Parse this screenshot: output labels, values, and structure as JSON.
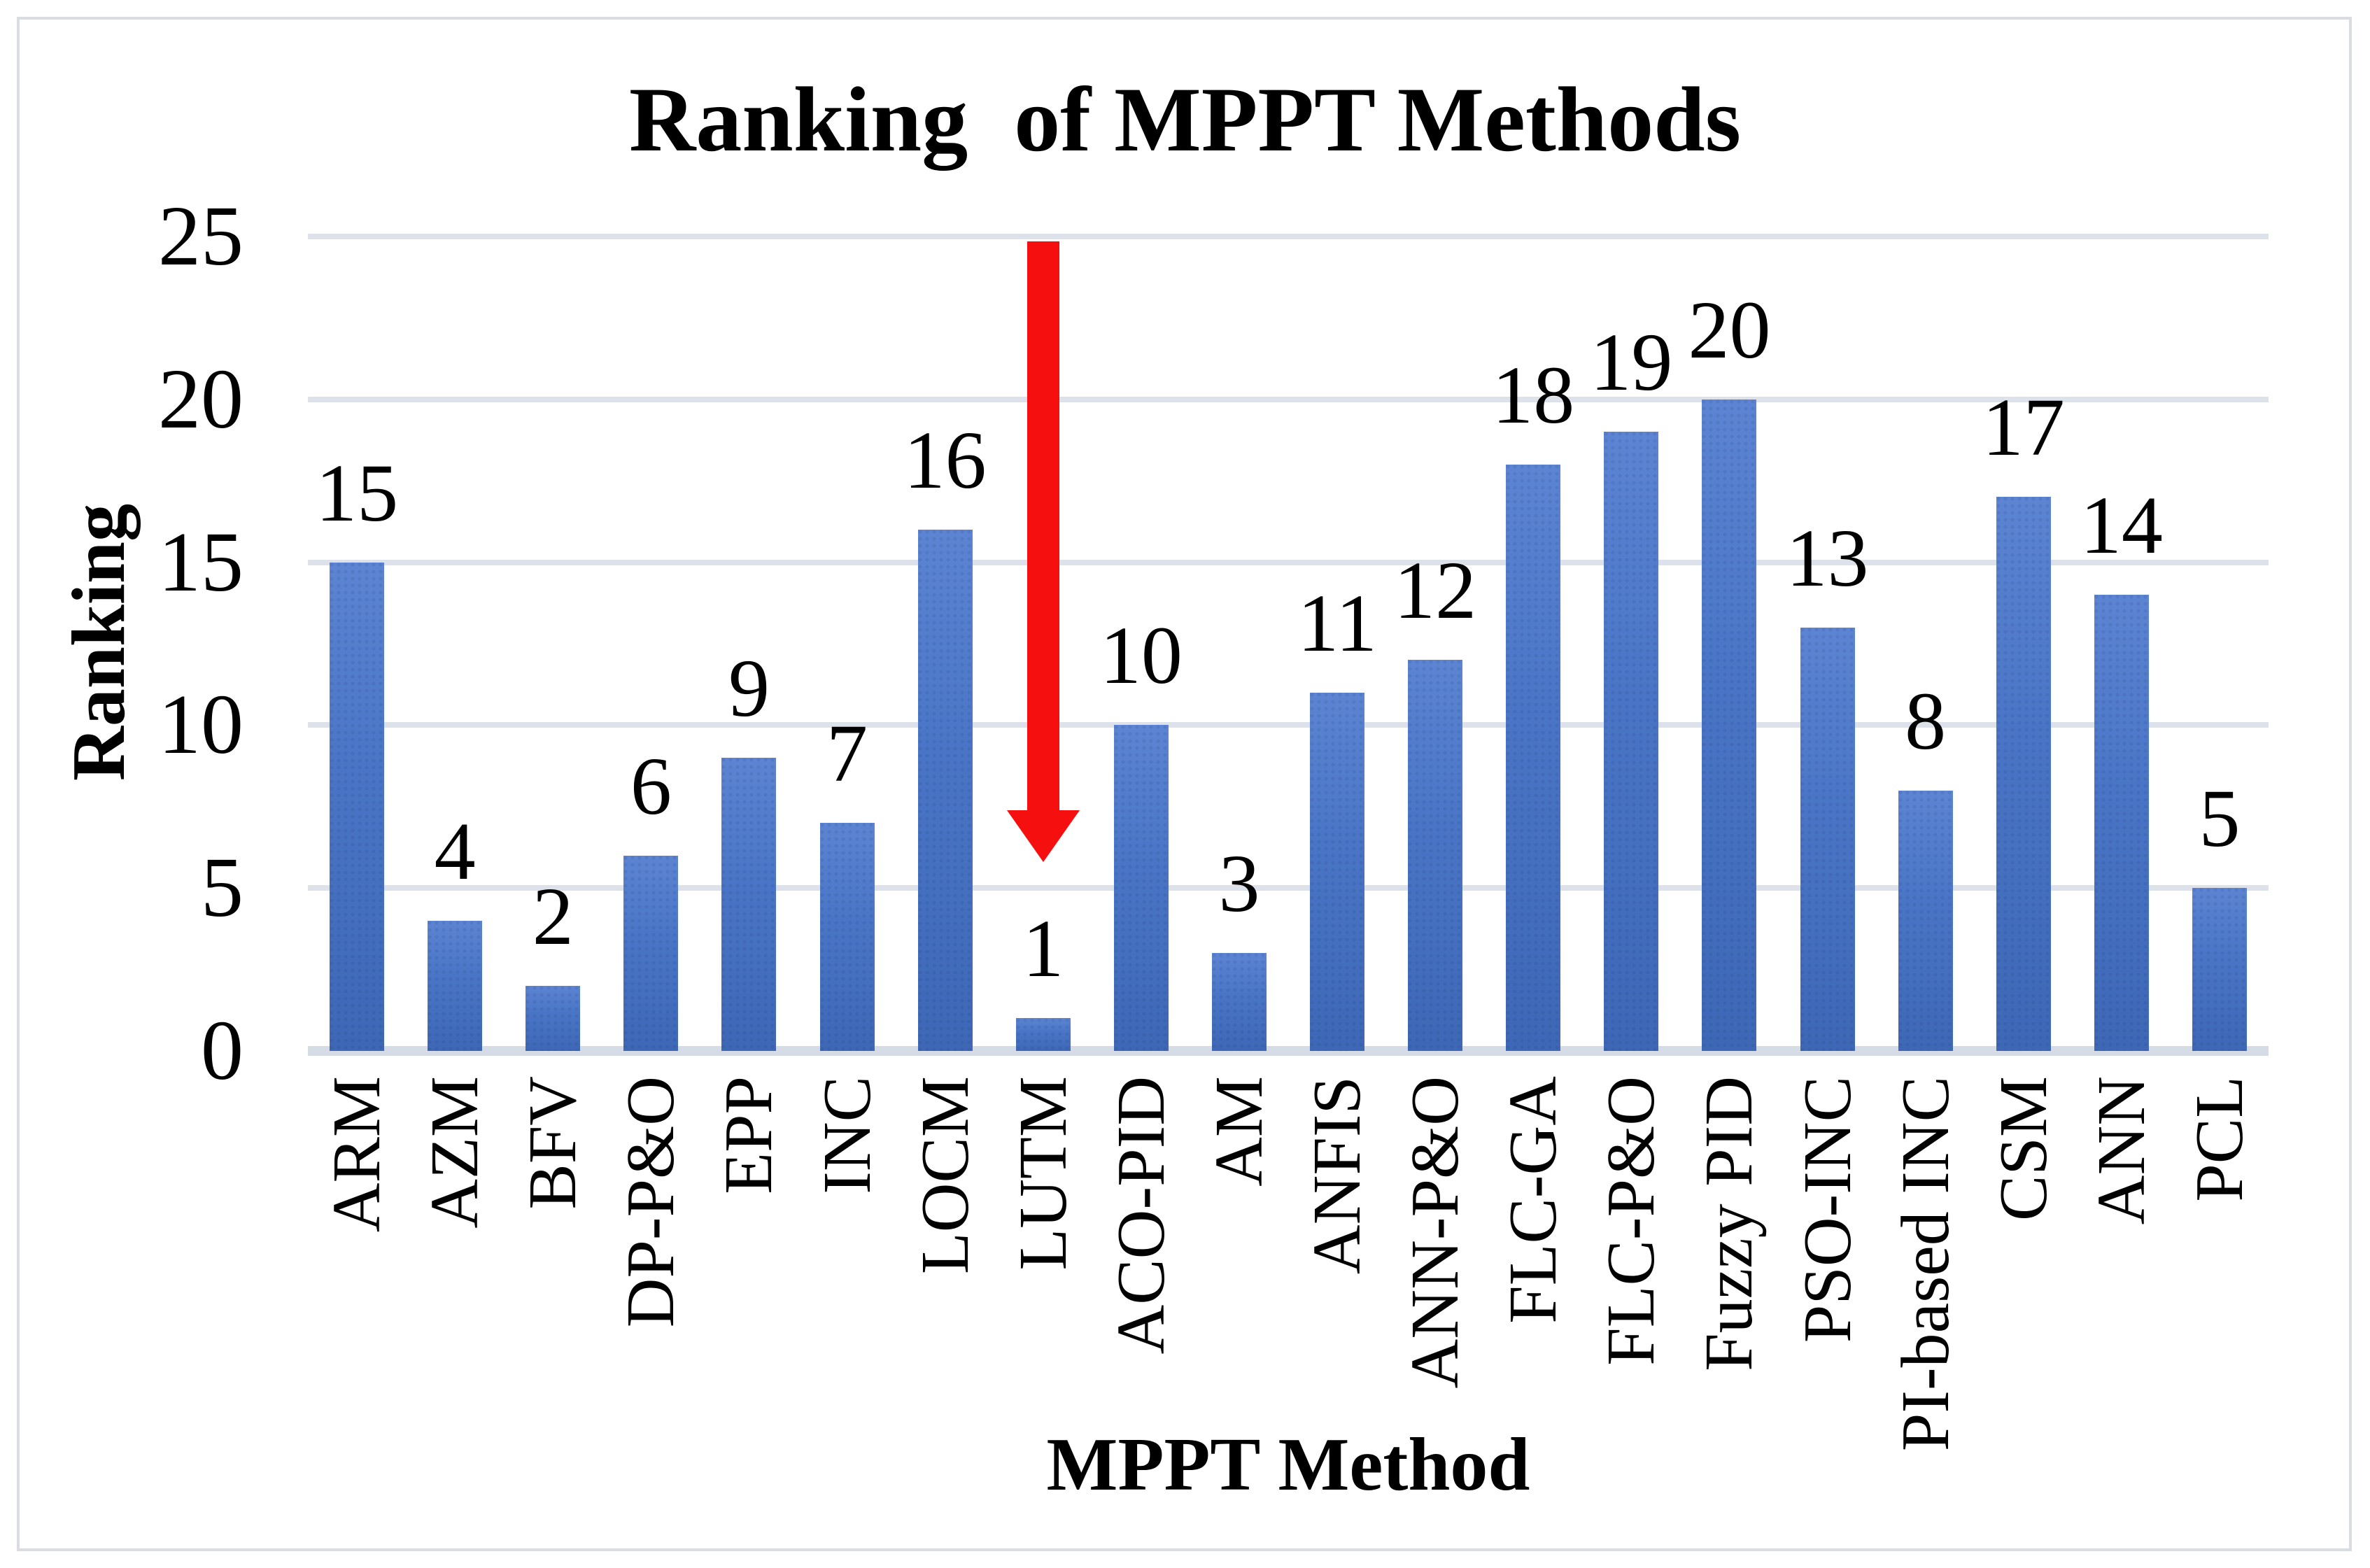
{
  "figure": {
    "background": "#FFFFFF",
    "border_color": "#D9DCE2"
  },
  "chart_data": {
    "type": "bar",
    "title": "Ranking  of MPPT Methods",
    "xlabel": "MPPT Method",
    "ylabel": "Ranking",
    "categories": [
      "ARM",
      "AZM",
      "BFV",
      "DP-P&O",
      "EPP",
      "INC",
      "LOCM",
      "LUTM",
      "ACO-PID",
      "AM",
      "ANFIS",
      "ANN-P&O",
      "FLC-GA",
      "FLC-P&O",
      "Fuzzy PID",
      "PSO-INC",
      "PI-based INC",
      "CSM",
      "ANN",
      "PCL"
    ],
    "values": [
      15,
      4,
      2,
      6,
      9,
      7,
      16,
      1,
      10,
      3,
      11,
      12,
      18,
      19,
      20,
      13,
      8,
      17,
      14,
      5
    ],
    "data_labels_shown": true,
    "ylim": [
      0,
      25
    ],
    "yticks": [
      0,
      5,
      10,
      15,
      20,
      25
    ],
    "grid": true,
    "legend": "none",
    "bar_color": "#4472C4",
    "bar_gradient_top": "#5C84D2",
    "bar_gradient_bottom": "#3E68B6",
    "gridline_color": "#DCE1EA",
    "axis_line_color": "#D6DCE6",
    "text_color": "#000000",
    "annotation": {
      "type": "down-arrow",
      "target_category": "LUTM",
      "color": "#F50F0F"
    }
  }
}
